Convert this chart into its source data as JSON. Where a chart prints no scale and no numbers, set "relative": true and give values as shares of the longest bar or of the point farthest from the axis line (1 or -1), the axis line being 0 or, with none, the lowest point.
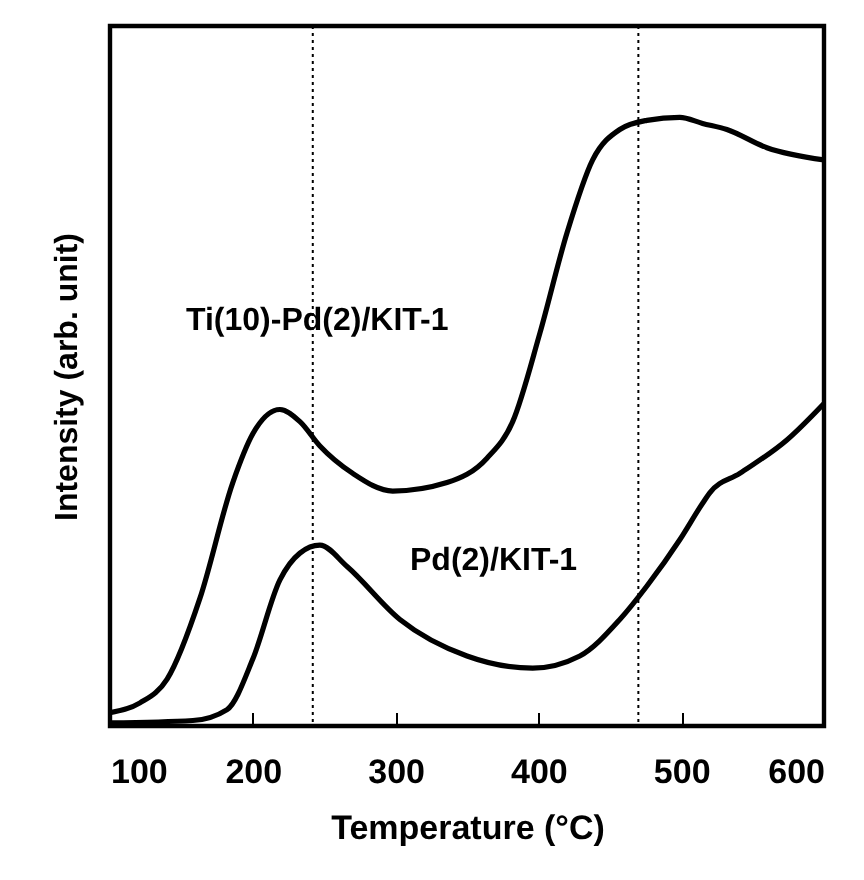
{
  "chart_data": {
    "type": "line",
    "xlabel": "Temperature (°C)",
    "ylabel": "Intensity (arb. unit)",
    "relative": true,
    "xlim": [
      100,
      600
    ],
    "xticks": [
      100,
      200,
      300,
      400,
      500,
      600
    ],
    "grid": false,
    "line_style": "solid",
    "series": [
      {
        "name": "Ti(10)-Pd(2)/KIT-1",
        "color": "#000000",
        "x": [
          100,
          121,
          140,
          163,
          186,
          200,
          219,
          233,
          247,
          270,
          298,
          336,
          364,
          382,
          401,
          420,
          438,
          457,
          476,
          499,
          515,
          532,
          560,
          600
        ],
        "values": [
          0.022,
          0.038,
          0.077,
          0.21,
          0.4,
          0.48,
          0.52,
          0.5,
          0.46,
          0.415,
          0.386,
          0.4,
          0.44,
          0.5,
          0.645,
          0.81,
          0.93,
          0.98,
          0.995,
          1.0,
          0.99,
          0.98,
          0.95,
          0.93
        ]
      },
      {
        "name": "Pd(2)/KIT-1",
        "color": "#000000",
        "x": [
          100,
          158,
          182,
          200,
          219,
          233,
          247,
          266,
          303,
          350,
          396,
          429,
          457,
          476,
          499,
          515,
          520,
          541,
          574,
          600
        ],
        "values": [
          0.005,
          0.009,
          0.027,
          0.11,
          0.24,
          0.284,
          0.297,
          0.262,
          0.175,
          0.115,
          0.095,
          0.115,
          0.175,
          0.23,
          0.306,
          0.366,
          0.383,
          0.415,
          0.47,
          0.53
        ]
      }
    ],
    "ref_lines": [
      {
        "axis": "x",
        "value": 242,
        "color": "#000000",
        "line_style": "dotted"
      },
      {
        "axis": "x",
        "value": 470,
        "color": "#000000",
        "line_style": "dotted"
      }
    ]
  }
}
